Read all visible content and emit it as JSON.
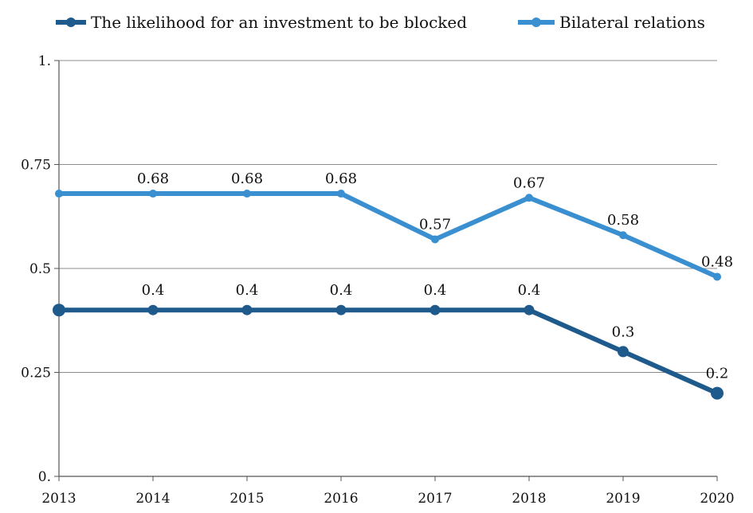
{
  "chart_data": {
    "type": "line",
    "title": "",
    "xlabel": "",
    "ylabel": "",
    "categories": [
      "2013",
      "2014",
      "2015",
      "2016",
      "2017",
      "2018",
      "2019",
      "2020"
    ],
    "ylim": [
      0,
      1
    ],
    "yticks": [
      0,
      0.25,
      0.5,
      0.75,
      1
    ],
    "ytick_labels": [
      "0.",
      "0.25",
      "0.5",
      "0.75",
      "1."
    ],
    "grid": "horizontal",
    "legend_position": "top",
    "series": [
      {
        "name": "The likelihood for an investment to be blocked",
        "values": [
          0.4,
          0.4,
          0.4,
          0.4,
          0.4,
          0.4,
          0.3,
          0.2
        ],
        "data_labels": [
          "",
          "0.4",
          "0.4",
          "0.4",
          "0.4",
          "0.4",
          "0.3",
          "0.2"
        ],
        "color": "#1f5a8c"
      },
      {
        "name": "Bilateral relations",
        "values": [
          0.68,
          0.68,
          0.68,
          0.68,
          0.57,
          0.67,
          0.58,
          0.48
        ],
        "data_labels": [
          "",
          "0.68",
          "0.68",
          "0.68",
          "0.57",
          "0.67",
          "0.58",
          "0.48"
        ],
        "color": "#3a8fd0"
      }
    ]
  }
}
